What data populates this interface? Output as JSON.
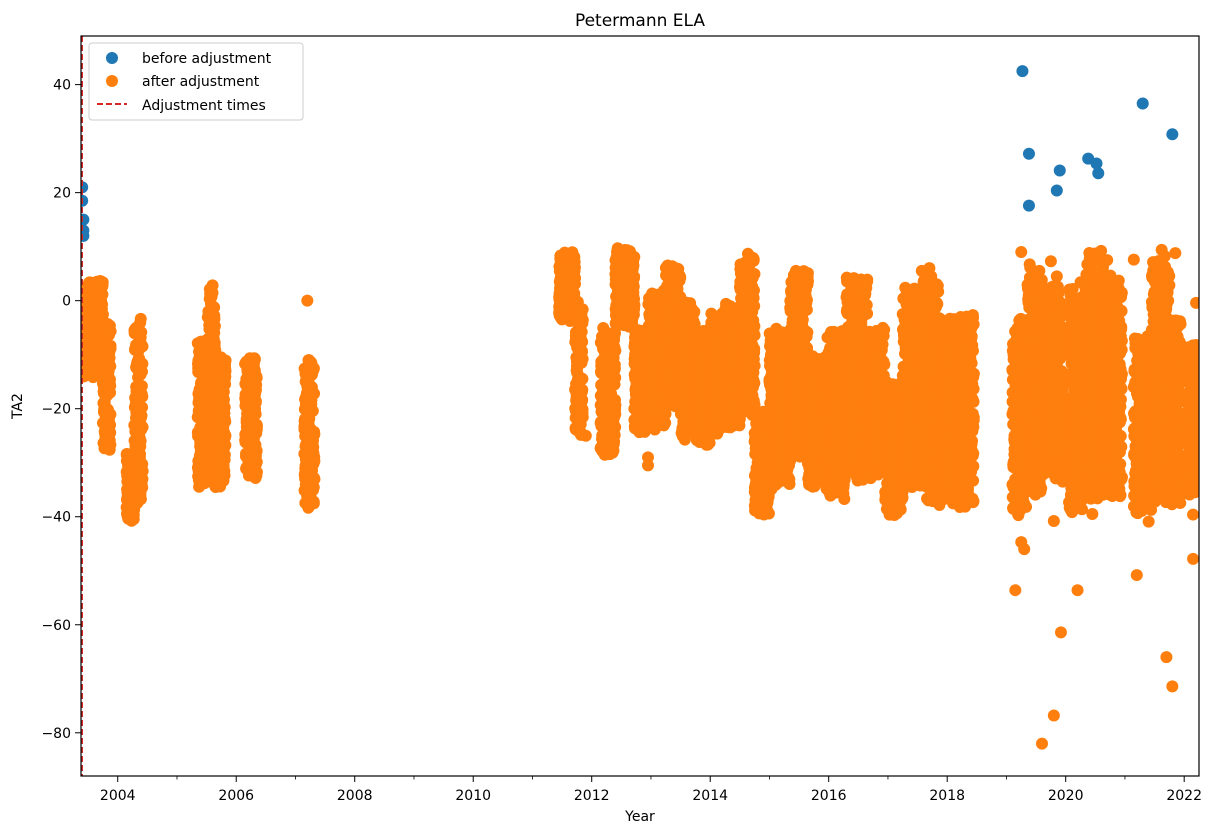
{
  "chart_data": {
    "type": "scatter",
    "title": "Petermann ELA",
    "xlabel": "Year",
    "ylabel": "TA2",
    "xlim": [
      2003.38,
      2022.25
    ],
    "ylim": [
      -88,
      49
    ],
    "x_major_ticks": [
      2004,
      2006,
      2008,
      2010,
      2012,
      2014,
      2016,
      2018,
      2020,
      2022
    ],
    "x_minor_ticks": [
      2005,
      2007,
      2009,
      2011,
      2013,
      2015,
      2017,
      2019,
      2021
    ],
    "y_ticks": [
      40,
      20,
      0,
      -20,
      -40,
      -60,
      -80
    ],
    "y_tick_labels": [
      "40",
      "20",
      "0",
      "−20",
      "−40",
      "−60",
      "−80"
    ],
    "grid": false,
    "legend": {
      "placement": "top-left",
      "entries": [
        "before adjustment",
        "after adjustment",
        "Adjustment times"
      ]
    },
    "colors": {
      "before": "#1f77b4",
      "after": "#ff7f0e",
      "adjustment": "#d62728"
    },
    "adjustment_times": [
      2003.4
    ],
    "series": [
      {
        "name": "before adjustment",
        "points": [
          [
            2003.4,
            21
          ],
          [
            2003.4,
            18.5
          ],
          [
            2003.42,
            15
          ],
          [
            2003.42,
            13
          ],
          [
            2003.42,
            12
          ],
          [
            2019.27,
            42.5
          ],
          [
            2019.38,
            27.2
          ],
          [
            2019.38,
            17.6
          ],
          [
            2019.85,
            20.4
          ],
          [
            2019.9,
            24.1
          ],
          [
            2020.38,
            26.3
          ],
          [
            2020.52,
            25.4
          ],
          [
            2020.55,
            23.6
          ],
          [
            2021.3,
            36.5
          ],
          [
            2021.8,
            30.8
          ]
        ]
      },
      {
        "name": "after adjustment",
        "bands": [
          [
            2003.4,
            2003.6,
            -15,
            4
          ],
          [
            2003.6,
            2003.75,
            -12,
            4
          ],
          [
            2003.75,
            2003.88,
            -28,
            -3
          ],
          [
            2004.15,
            2004.28,
            -41,
            -28
          ],
          [
            2004.28,
            2004.42,
            -38,
            -3
          ],
          [
            2005.35,
            2005.52,
            -35,
            -7
          ],
          [
            2005.52,
            2005.65,
            -30,
            4
          ],
          [
            2005.65,
            2005.82,
            -35,
            -10
          ],
          [
            2006.15,
            2006.35,
            -33,
            -10
          ],
          [
            2007.15,
            2007.32,
            -39,
            -10
          ],
          [
            2011.45,
            2011.72,
            -4,
            9
          ],
          [
            2011.72,
            2011.85,
            -25,
            0
          ],
          [
            2012.15,
            2012.4,
            -29,
            -5
          ],
          [
            2012.4,
            2012.72,
            -5,
            10
          ],
          [
            2012.72,
            2012.95,
            -25,
            -5
          ],
          [
            2012.95,
            2013.25,
            -24,
            2
          ],
          [
            2013.25,
            2013.5,
            -20,
            7
          ],
          [
            2013.5,
            2013.75,
            -26,
            0
          ],
          [
            2013.75,
            2014.0,
            -27,
            -5
          ],
          [
            2014.0,
            2014.25,
            -25,
            -2
          ],
          [
            2014.25,
            2014.5,
            -24,
            0
          ],
          [
            2014.5,
            2014.75,
            -22,
            9
          ],
          [
            2014.75,
            2015.0,
            -40,
            -20
          ],
          [
            2015.0,
            2015.35,
            -35,
            -5
          ],
          [
            2015.35,
            2015.65,
            -30,
            6
          ],
          [
            2015.65,
            2015.98,
            -35,
            -10
          ],
          [
            2015.98,
            2016.3,
            -37,
            -5
          ],
          [
            2016.3,
            2016.65,
            -34,
            5
          ],
          [
            2016.65,
            2016.95,
            -33,
            -5
          ],
          [
            2016.95,
            2017.25,
            -40,
            -15
          ],
          [
            2017.25,
            2017.55,
            -35,
            3
          ],
          [
            2017.55,
            2017.85,
            -38,
            7
          ],
          [
            2017.85,
            2018.15,
            -38,
            -2
          ],
          [
            2018.15,
            2018.45,
            -39,
            -2
          ],
          [
            2019.1,
            2019.35,
            -40,
            -3
          ],
          [
            2019.35,
            2019.6,
            -36,
            8
          ],
          [
            2019.6,
            2019.95,
            -33,
            3
          ],
          [
            2020.05,
            2020.35,
            -40,
            3
          ],
          [
            2020.35,
            2020.65,
            -38,
            10
          ],
          [
            2020.65,
            2020.95,
            -37,
            5
          ],
          [
            2021.15,
            2021.45,
            -40,
            -5
          ],
          [
            2021.45,
            2021.75,
            -38,
            9
          ],
          [
            2021.75,
            2021.95,
            -38,
            -3
          ],
          [
            2022.05,
            2022.25,
            -36,
            -8
          ]
        ],
        "points": [
          [
            2007.2,
            0
          ],
          [
            2012.95,
            -29
          ],
          [
            2012.95,
            -30.5
          ],
          [
            2011.9,
            -25
          ],
          [
            2019.15,
            -53.6
          ],
          [
            2019.25,
            -44.7
          ],
          [
            2019.3,
            -46
          ],
          [
            2019.25,
            9
          ],
          [
            2019.65,
            -30
          ],
          [
            2019.6,
            -82
          ],
          [
            2019.8,
            -76.8
          ],
          [
            2019.8,
            -40.8
          ],
          [
            2019.92,
            -61.4
          ],
          [
            2019.95,
            -33.5
          ],
          [
            2020.2,
            -53.6
          ],
          [
            2020.45,
            -39.5
          ],
          [
            2021.2,
            -50.8
          ],
          [
            2021.4,
            -40.9
          ],
          [
            2021.65,
            -34.7
          ],
          [
            2021.7,
            -66
          ],
          [
            2021.8,
            -71.4
          ],
          [
            2021.85,
            8.8
          ],
          [
            2022.15,
            -39.6
          ],
          [
            2022.15,
            -47.8
          ],
          [
            2022.2,
            -0.4
          ],
          [
            2022.2,
            -8.2
          ],
          [
            2019.75,
            7.3
          ],
          [
            2020.25,
            3.4
          ],
          [
            2020.7,
            7.5
          ],
          [
            2021.15,
            7.6
          ],
          [
            2021.62,
            9.4
          ],
          [
            2019.85,
            4.5
          ],
          [
            2020.05,
            -26
          ],
          [
            2020.6,
            -30.5
          ],
          [
            2019.5,
            -26.5
          ]
        ]
      }
    ]
  }
}
